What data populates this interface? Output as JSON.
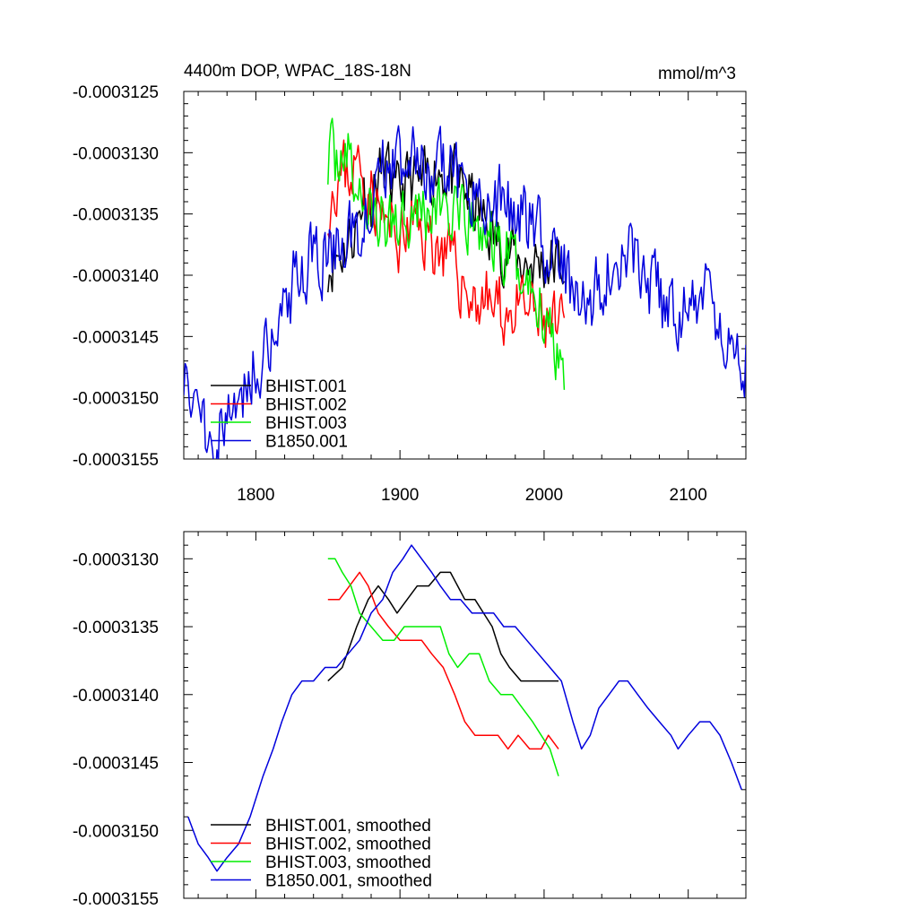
{
  "colors": {
    "black": "#000000",
    "red": "#ff0000",
    "green": "#00ee00",
    "blue": "#0000dd"
  },
  "chart_data": [
    {
      "type": "line",
      "title": "4400m DOP, WPAC_18S-18N",
      "units_label": "mmol/m^3",
      "xlim": [
        1750,
        2140
      ],
      "ylim": [
        -0.0003155,
        -0.0003125
      ],
      "x_ticks": [
        1800,
        1900,
        2000,
        2100
      ],
      "x_tick_labels": [
        "1800",
        "1900",
        "2000",
        "2100"
      ],
      "y_ticks": [
        -0.0003125,
        -0.000313,
        -0.0003135,
        -0.000314,
        -0.0003145,
        -0.000315,
        -0.0003155
      ],
      "y_tick_labels": [
        "-0.0003125",
        "-0.0003130",
        "-0.0003135",
        "-0.0003140",
        "-0.0003145",
        "-0.0003150",
        "-0.0003155"
      ],
      "legend_position": "bottom-left",
      "legend": [
        "BHIST.001",
        "BHIST.002",
        "BHIST.003",
        "B1850.001"
      ],
      "series": [
        {
          "name": "BHIST.001",
          "color": "#000000",
          "noise": 2.4e-07,
          "seed": 11,
          "anchors": [
            [
              1850,
              -0.0003139
            ],
            [
              1860,
              -0.0003138
            ],
            [
              1870,
              -0.0003136
            ],
            [
              1875,
              -0.0003133
            ],
            [
              1880,
              -0.0003134
            ],
            [
              1885,
              -0.0003132
            ],
            [
              1890,
              -0.0003131
            ],
            [
              1897,
              -0.0003134
            ],
            [
              1905,
              -0.0003132
            ],
            [
              1915,
              -0.0003133
            ],
            [
              1925,
              -0.0003131
            ],
            [
              1935,
              -0.0003132
            ],
            [
              1945,
              -0.0003133
            ],
            [
              1955,
              -0.0003135
            ],
            [
              1965,
              -0.0003137
            ],
            [
              1975,
              -0.0003138
            ],
            [
              1985,
              -0.0003139
            ],
            [
              1995,
              -0.0003139
            ],
            [
              2005,
              -0.0003139
            ],
            [
              2014,
              -0.0003139
            ]
          ]
        },
        {
          "name": "BHIST.002",
          "color": "#ff0000",
          "noise": 2.6e-07,
          "seed": 23,
          "anchors": [
            [
              1850,
              -0.0003134
            ],
            [
              1855,
              -0.0003132
            ],
            [
              1860,
              -0.0003132
            ],
            [
              1870,
              -0.0003131
            ],
            [
              1880,
              -0.0003133
            ],
            [
              1890,
              -0.0003136
            ],
            [
              1900,
              -0.0003137
            ],
            [
              1910,
              -0.0003136
            ],
            [
              1920,
              -0.0003137
            ],
            [
              1930,
              -0.0003138
            ],
            [
              1940,
              -0.000314
            ],
            [
              1950,
              -0.0003142
            ],
            [
              1960,
              -0.0003142
            ],
            [
              1970,
              -0.0003143
            ],
            [
              1980,
              -0.0003143
            ],
            [
              1990,
              -0.0003143
            ],
            [
              2000,
              -0.0003144
            ],
            [
              2014,
              -0.0003145
            ]
          ]
        },
        {
          "name": "BHIST.003",
          "color": "#00ee00",
          "noise": 2.6e-07,
          "seed": 37,
          "anchors": [
            [
              1850,
              -0.000313
            ],
            [
              1855,
              -0.0003131
            ],
            [
              1860,
              -0.0003129
            ],
            [
              1870,
              -0.0003133
            ],
            [
              1880,
              -0.0003135
            ],
            [
              1890,
              -0.0003136
            ],
            [
              1900,
              -0.0003135
            ],
            [
              1910,
              -0.0003134
            ],
            [
              1920,
              -0.0003135
            ],
            [
              1930,
              -0.0003134
            ],
            [
              1940,
              -0.0003136
            ],
            [
              1950,
              -0.0003136
            ],
            [
              1960,
              -0.0003137
            ],
            [
              1970,
              -0.0003138
            ],
            [
              1980,
              -0.0003139
            ],
            [
              1990,
              -0.0003141
            ],
            [
              2000,
              -0.0003143
            ],
            [
              2007,
              -0.0003145
            ],
            [
              2014,
              -0.0003147
            ]
          ]
        },
        {
          "name": "B1850.001",
          "color": "#0000dd",
          "noise": 2.8e-07,
          "seed": 51,
          "anchors": [
            [
              1750,
              -0.0003147
            ],
            [
              1755,
              -0.0003149
            ],
            [
              1760,
              -0.0003151
            ],
            [
              1770,
              -0.0003153
            ],
            [
              1780,
              -0.0003152
            ],
            [
              1790,
              -0.000315
            ],
            [
              1800,
              -0.0003147
            ],
            [
              1810,
              -0.0003145
            ],
            [
              1820,
              -0.0003142
            ],
            [
              1830,
              -0.000314
            ],
            [
              1840,
              -0.0003139
            ],
            [
              1850,
              -0.0003138
            ],
            [
              1860,
              -0.0003138
            ],
            [
              1870,
              -0.0003136
            ],
            [
              1880,
              -0.0003134
            ],
            [
              1890,
              -0.0003131
            ],
            [
              1900,
              -0.0003131
            ],
            [
              1905,
              -0.0003129
            ],
            [
              1910,
              -0.0003131
            ],
            [
              1920,
              -0.0003133
            ],
            [
              1930,
              -0.0003131
            ],
            [
              1940,
              -0.0003132
            ],
            [
              1950,
              -0.0003133
            ],
            [
              1960,
              -0.0003134
            ],
            [
              1970,
              -0.0003134
            ],
            [
              1980,
              -0.0003135
            ],
            [
              1990,
              -0.0003136
            ],
            [
              2000,
              -0.0003137
            ],
            [
              2010,
              -0.0003138
            ],
            [
              2020,
              -0.0003142
            ],
            [
              2030,
              -0.0003144
            ],
            [
              2040,
              -0.000314
            ],
            [
              2050,
              -0.0003139
            ],
            [
              2060,
              -0.0003139
            ],
            [
              2070,
              -0.0003141
            ],
            [
              2080,
              -0.0003142
            ],
            [
              2090,
              -0.0003144
            ],
            [
              2100,
              -0.0003143
            ],
            [
              2110,
              -0.0003142
            ],
            [
              2120,
              -0.0003143
            ],
            [
              2130,
              -0.0003145
            ],
            [
              2140,
              -0.0003147
            ]
          ]
        }
      ]
    },
    {
      "type": "line",
      "xlim": [
        1750,
        2140
      ],
      "ylim": [
        -0.0003155,
        -0.0003128
      ],
      "x_ticks": [
        1800,
        1900,
        2000,
        2100
      ],
      "y_ticks": [
        -0.000313,
        -0.0003135,
        -0.000314,
        -0.0003145,
        -0.000315,
        -0.0003155
      ],
      "y_tick_labels": [
        "-0.0003130",
        "-0.0003135",
        "-0.0003140",
        "-0.0003145",
        "-0.0003150",
        "-0.0003155"
      ],
      "legend_position": "bottom-left",
      "legend": [
        "BHIST.001, smoothed",
        "BHIST.002, smoothed",
        "BHIST.003, smoothed",
        "B1850.001, smoothed"
      ],
      "series": [
        {
          "name": "BHIST.001, smoothed",
          "color": "#000000",
          "points": [
            [
              1850,
              -0.0003139
            ],
            [
              1860,
              -0.0003138
            ],
            [
              1870,
              -0.0003135
            ],
            [
              1878,
              -0.0003133
            ],
            [
              1885,
              -0.0003132
            ],
            [
              1892,
              -0.0003133
            ],
            [
              1898,
              -0.0003134
            ],
            [
              1905,
              -0.0003133
            ],
            [
              1912,
              -0.0003132
            ],
            [
              1920,
              -0.0003132
            ],
            [
              1928,
              -0.0003131
            ],
            [
              1935,
              -0.0003131
            ],
            [
              1940,
              -0.0003132
            ],
            [
              1945,
              -0.0003133
            ],
            [
              1952,
              -0.0003133
            ],
            [
              1958,
              -0.0003134
            ],
            [
              1964,
              -0.0003135
            ],
            [
              1970,
              -0.0003137
            ],
            [
              1976,
              -0.0003138
            ],
            [
              1984,
              -0.0003139
            ],
            [
              1992,
              -0.0003139
            ],
            [
              2000,
              -0.0003139
            ],
            [
              2008,
              -0.0003139
            ],
            [
              2010,
              -0.0003139
            ]
          ]
        },
        {
          "name": "BHIST.002, smoothed",
          "color": "#ff0000",
          "points": [
            [
              1850,
              -0.0003133
            ],
            [
              1858,
              -0.0003133
            ],
            [
              1865,
              -0.0003132
            ],
            [
              1872,
              -0.0003131
            ],
            [
              1878,
              -0.0003132
            ],
            [
              1885,
              -0.0003134
            ],
            [
              1892,
              -0.0003135
            ],
            [
              1900,
              -0.0003136
            ],
            [
              1908,
              -0.0003136
            ],
            [
              1915,
              -0.0003136
            ],
            [
              1922,
              -0.0003137
            ],
            [
              1930,
              -0.0003138
            ],
            [
              1938,
              -0.000314
            ],
            [
              1945,
              -0.0003142
            ],
            [
              1952,
              -0.0003143
            ],
            [
              1960,
              -0.0003143
            ],
            [
              1968,
              -0.0003143
            ],
            [
              1975,
              -0.0003144
            ],
            [
              1982,
              -0.0003143
            ],
            [
              1990,
              -0.0003144
            ],
            [
              1998,
              -0.0003144
            ],
            [
              2003,
              -0.0003143
            ],
            [
              2010,
              -0.0003144
            ]
          ]
        },
        {
          "name": "BHIST.003, smoothed",
          "color": "#00ee00",
          "points": [
            [
              1850,
              -0.000313
            ],
            [
              1855,
              -0.000313
            ],
            [
              1860,
              -0.0003131
            ],
            [
              1866,
              -0.0003132
            ],
            [
              1872,
              -0.0003134
            ],
            [
              1880,
              -0.0003135
            ],
            [
              1888,
              -0.0003136
            ],
            [
              1896,
              -0.0003136
            ],
            [
              1903,
              -0.0003135
            ],
            [
              1910,
              -0.0003135
            ],
            [
              1916,
              -0.0003135
            ],
            [
              1922,
              -0.0003135
            ],
            [
              1928,
              -0.0003135
            ],
            [
              1934,
              -0.0003137
            ],
            [
              1940,
              -0.0003138
            ],
            [
              1948,
              -0.0003137
            ],
            [
              1955,
              -0.0003137
            ],
            [
              1962,
              -0.0003139
            ],
            [
              1970,
              -0.000314
            ],
            [
              1978,
              -0.000314
            ],
            [
              1985,
              -0.0003141
            ],
            [
              1992,
              -0.0003142
            ],
            [
              1998,
              -0.0003143
            ],
            [
              2004,
              -0.0003144
            ],
            [
              2010,
              -0.0003146
            ]
          ]
        },
        {
          "name": "B1850.001, smoothed",
          "color": "#0000dd",
          "points": [
            [
              1753,
              -0.0003149
            ],
            [
              1760,
              -0.0003151
            ],
            [
              1767,
              -0.0003152
            ],
            [
              1773,
              -0.0003153
            ],
            [
              1780,
              -0.0003152
            ],
            [
              1788,
              -0.0003151
            ],
            [
              1796,
              -0.0003149
            ],
            [
              1805,
              -0.0003146
            ],
            [
              1812,
              -0.0003144
            ],
            [
              1818,
              -0.0003142
            ],
            [
              1825,
              -0.000314
            ],
            [
              1832,
              -0.0003139
            ],
            [
              1840,
              -0.0003139
            ],
            [
              1848,
              -0.0003138
            ],
            [
              1856,
              -0.0003138
            ],
            [
              1864,
              -0.0003137
            ],
            [
              1872,
              -0.0003136
            ],
            [
              1880,
              -0.0003134
            ],
            [
              1888,
              -0.0003133
            ],
            [
              1895,
              -0.0003131
            ],
            [
              1902,
              -0.000313
            ],
            [
              1908,
              -0.0003129
            ],
            [
              1915,
              -0.000313
            ],
            [
              1922,
              -0.0003131
            ],
            [
              1928,
              -0.0003132
            ],
            [
              1935,
              -0.0003133
            ],
            [
              1942,
              -0.0003133
            ],
            [
              1950,
              -0.0003134
            ],
            [
              1958,
              -0.0003134
            ],
            [
              1965,
              -0.0003134
            ],
            [
              1972,
              -0.0003135
            ],
            [
              1980,
              -0.0003135
            ],
            [
              1988,
              -0.0003136
            ],
            [
              1996,
              -0.0003137
            ],
            [
              2004,
              -0.0003138
            ],
            [
              2012,
              -0.0003139
            ],
            [
              2020,
              -0.0003142
            ],
            [
              2026,
              -0.0003144
            ],
            [
              2032,
              -0.0003143
            ],
            [
              2038,
              -0.0003141
            ],
            [
              2045,
              -0.000314
            ],
            [
              2052,
              -0.0003139
            ],
            [
              2058,
              -0.0003139
            ],
            [
              2065,
              -0.000314
            ],
            [
              2072,
              -0.0003141
            ],
            [
              2080,
              -0.0003142
            ],
            [
              2088,
              -0.0003143
            ],
            [
              2093,
              -0.0003144
            ],
            [
              2100,
              -0.0003143
            ],
            [
              2108,
              -0.0003142
            ],
            [
              2115,
              -0.0003142
            ],
            [
              2122,
              -0.0003143
            ],
            [
              2130,
              -0.0003145
            ],
            [
              2137,
              -0.0003147
            ]
          ]
        }
      ]
    }
  ]
}
